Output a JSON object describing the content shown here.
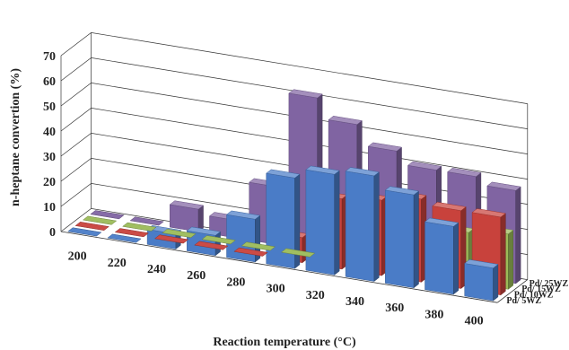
{
  "chart_data": {
    "type": "bar",
    "subtype": "3d-clustered-depth",
    "xlabel": "Reaction temperature (°C)",
    "ylabel": "n-heptane convertion (%)",
    "ylim": [
      0,
      70
    ],
    "yticks": [
      "0",
      "10",
      "20",
      "30",
      "40",
      "50",
      "60",
      "70"
    ],
    "categories": [
      "200",
      "220",
      "240",
      "260",
      "280",
      "300",
      "320",
      "340",
      "360",
      "380",
      "400"
    ],
    "grid": true,
    "series": [
      {
        "name": "Pd/ 5WZ",
        "color": "#4a7cc7",
        "values": [
          0,
          0,
          6,
          8,
          17,
          36,
          40,
          42,
          37,
          27,
          13
        ]
      },
      {
        "name": "Pd/ 10WZ",
        "color": "#c8423c",
        "values": [
          0,
          0,
          0,
          0,
          0,
          10,
          28,
          30,
          33,
          31,
          31
        ]
      },
      {
        "name": "Pd/ 15WZ",
        "color": "#9bbb59",
        "values": [
          0,
          0,
          0,
          0,
          0,
          0,
          8,
          12,
          16,
          20,
          22
        ]
      },
      {
        "name": "Pd/ 25WZ",
        "color": "#8064a2",
        "values": [
          0,
          0,
          9,
          7,
          23,
          61,
          53,
          45,
          40,
          40,
          37
        ]
      }
    ]
  }
}
